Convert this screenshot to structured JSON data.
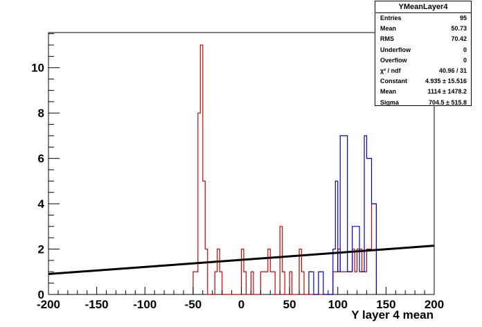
{
  "chart_data": {
    "type": "histogram",
    "title": "YMeanLayer4",
    "xlabel": "Y layer 4 mean",
    "ylabel": "",
    "xlim": [
      -200,
      200
    ],
    "ylim": [
      0,
      11.55
    ],
    "x_ticks": [
      "-200",
      "-150",
      "-100",
      "-50",
      "0",
      "50",
      "100",
      "150",
      "200"
    ],
    "y_ticks": [
      "0",
      "2",
      "4",
      "6",
      "8",
      "10"
    ],
    "bin_width": 5,
    "series": [
      {
        "color": "#cc0000",
        "bins": [
          {
            "x": -50,
            "y": 1
          },
          {
            "x": -45,
            "y": 8
          },
          {
            "x": -42.5,
            "y": 11
          },
          {
            "x": -40,
            "y": 5
          },
          {
            "x": -37.5,
            "y": 2
          },
          {
            "x": -35,
            "y": 0
          },
          {
            "x": -27.5,
            "y": 1
          },
          {
            "x": -25,
            "y": 2
          },
          {
            "x": -22.5,
            "y": 1
          },
          {
            "x": -20,
            "y": 0
          },
          {
            "x": 0,
            "y": 2
          },
          {
            "x": 2.5,
            "y": 1
          },
          {
            "x": 5,
            "y": 0
          },
          {
            "x": 10,
            "y": 1
          },
          {
            "x": 12.5,
            "y": 0
          },
          {
            "x": 20,
            "y": 1
          },
          {
            "x": 25,
            "y": 1
          },
          {
            "x": 27.5,
            "y": 2
          },
          {
            "x": 30,
            "y": 1
          },
          {
            "x": 35,
            "y": 0
          },
          {
            "x": 40,
            "y": 3
          },
          {
            "x": 42.5,
            "y": 1
          },
          {
            "x": 45,
            "y": 0
          },
          {
            "x": 50,
            "y": 1
          },
          {
            "x": 52.5,
            "y": 0
          },
          {
            "x": 60,
            "y": 2
          },
          {
            "x": 62.5,
            "y": 1
          },
          {
            "x": 65,
            "y": 0
          },
          {
            "x": 95,
            "y": 1
          },
          {
            "x": 100,
            "y": 2
          },
          {
            "x": 102.5,
            "y": 1
          },
          {
            "x": 115,
            "y": 2
          },
          {
            "x": 117.5,
            "y": 1
          },
          {
            "x": 120,
            "y": 2
          },
          {
            "x": 125,
            "y": 1
          },
          {
            "x": 130,
            "y": 2
          },
          {
            "x": 135,
            "y": 4
          },
          {
            "x": 140,
            "y": 0
          }
        ]
      },
      {
        "color": "#0000cc",
        "bins": [
          {
            "x": 70,
            "y": 1
          },
          {
            "x": 75,
            "y": 0
          },
          {
            "x": 80,
            "y": 1
          },
          {
            "x": 85,
            "y": 0
          },
          {
            "x": 95,
            "y": 2
          },
          {
            "x": 97.5,
            "y": 5
          },
          {
            "x": 100,
            "y": 1
          },
          {
            "x": 102.5,
            "y": 7
          },
          {
            "x": 110,
            "y": 1
          },
          {
            "x": 115,
            "y": 3
          },
          {
            "x": 122.5,
            "y": 1
          },
          {
            "x": 127.5,
            "y": 7
          },
          {
            "x": 130,
            "y": 6
          },
          {
            "x": 135,
            "y": 4
          },
          {
            "x": 140,
            "y": 0
          }
        ]
      }
    ],
    "fit": {
      "type": "line",
      "color": "#000000",
      "points": [
        {
          "x": -200,
          "y": 0.9
        },
        {
          "x": 200,
          "y": 2.15
        }
      ]
    }
  },
  "stats_box": {
    "title": "YMeanLayer4",
    "rows": [
      {
        "label": "Entries",
        "value": "95"
      },
      {
        "label": "Mean",
        "value": "50.73"
      },
      {
        "label": "RMS",
        "value": "70.42"
      },
      {
        "label": "Underflow",
        "value": "0"
      },
      {
        "label": "Overflow",
        "value": "0"
      },
      {
        "label": "χ² / ndf",
        "value": "40.96 / 31"
      },
      {
        "label": "Constant",
        "value": "4.935 ± 15.516"
      },
      {
        "label": "Mean",
        "value": "1114 ± 1478.2"
      },
      {
        "label": "Sigma",
        "value": "704.5 ± 515.8"
      }
    ]
  }
}
